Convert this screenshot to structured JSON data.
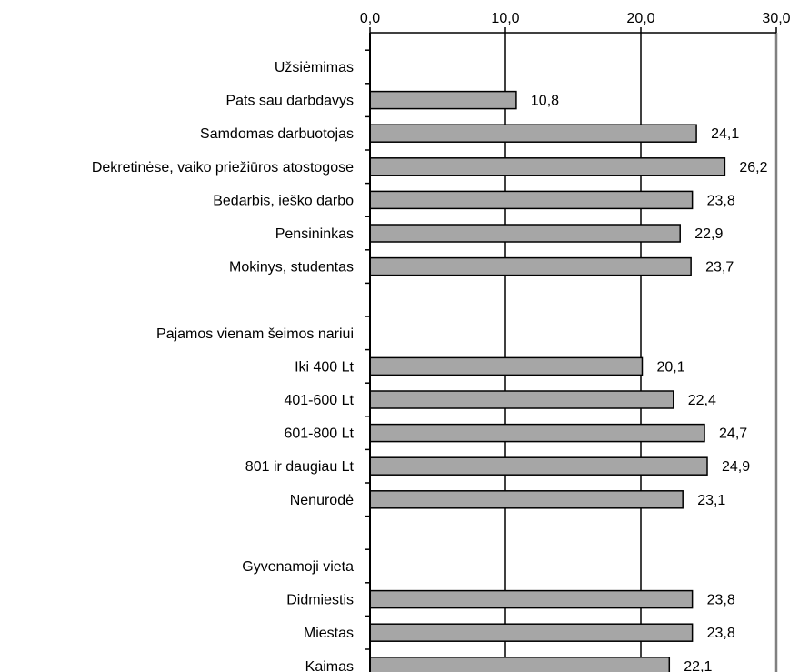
{
  "chart_data": {
    "type": "bar",
    "orientation": "horizontal",
    "xlim": [
      0,
      30
    ],
    "x_ticks": [
      {
        "value": 0,
        "label": "0,0"
      },
      {
        "value": 10,
        "label": "10,0"
      },
      {
        "value": 20,
        "label": "20,0"
      },
      {
        "value": 30,
        "label": "30,0"
      }
    ],
    "x_axis_position": "top",
    "grid": "vertical major gridlines",
    "legend": "none",
    "bar_color": "#a6a6a6",
    "bar_border_color": "#000000",
    "rows": [
      {
        "label": "Užsiėmimas",
        "value": null
      },
      {
        "label": "Pats sau darbdavys",
        "value": 10.8,
        "value_label": "10,8"
      },
      {
        "label": "Samdomas darbuotojas",
        "value": 24.1,
        "value_label": "24,1"
      },
      {
        "label": "Dekretinėse, vaiko priežiūros atostogose",
        "value": 26.2,
        "value_label": "26,2"
      },
      {
        "label": "Bedarbis, ieško darbo",
        "value": 23.8,
        "value_label": "23,8"
      },
      {
        "label": "Pensininkas",
        "value": 22.9,
        "value_label": "22,9"
      },
      {
        "label": "Mokinys, studentas",
        "value": 23.7,
        "value_label": "23,7"
      },
      {
        "label": "",
        "value": null
      },
      {
        "label": "Pajamos vienam šeimos nariui",
        "value": null
      },
      {
        "label": "Iki 400 Lt",
        "value": 20.1,
        "value_label": "20,1"
      },
      {
        "label": "401-600 Lt",
        "value": 22.4,
        "value_label": "22,4"
      },
      {
        "label": "601-800 Lt",
        "value": 24.7,
        "value_label": "24,7"
      },
      {
        "label": "801 ir daugiau Lt",
        "value": 24.9,
        "value_label": "24,9"
      },
      {
        "label": "Nenurodė",
        "value": 23.1,
        "value_label": "23,1"
      },
      {
        "label": "",
        "value": null
      },
      {
        "label": "Gyvenamoji vieta",
        "value": null
      },
      {
        "label": "Didmiestis",
        "value": 23.8,
        "value_label": "23,8"
      },
      {
        "label": "Miestas",
        "value": 23.8,
        "value_label": "23,8"
      },
      {
        "label": "Kaimas",
        "value": 22.1,
        "value_label": "22,1"
      }
    ]
  }
}
